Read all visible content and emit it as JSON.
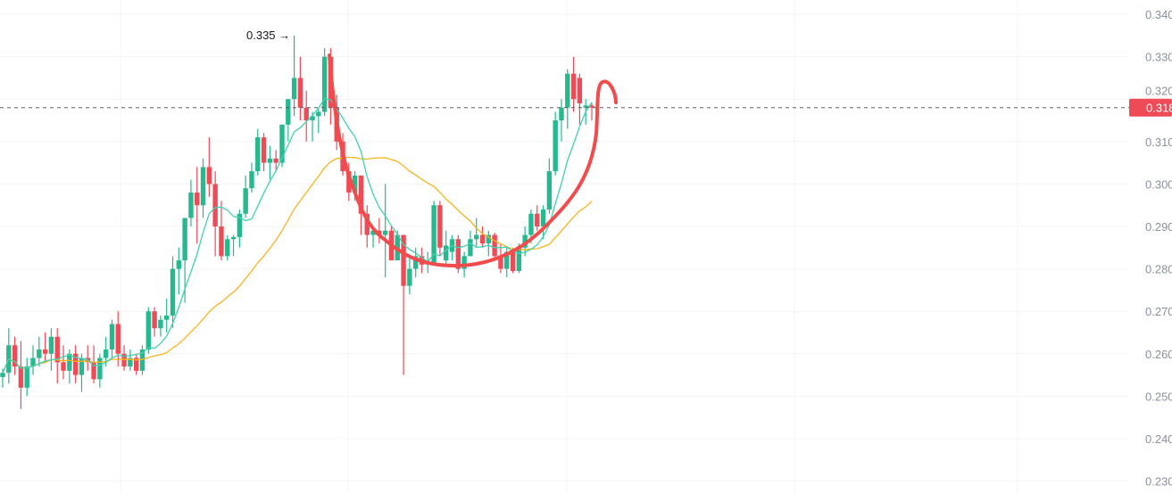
{
  "chart_data": {
    "type": "candlestick",
    "title": "",
    "ylim": [
      0.23,
      0.34
    ],
    "yticks": [
      "0.340",
      "0.330",
      "0.320",
      "0.310",
      "0.300",
      "0.290",
      "0.280",
      "0.270",
      "0.260",
      "0.250",
      "0.240",
      "0.230"
    ],
    "last_price": 0.318,
    "last_price_label": "0.318",
    "high_annotation": "0.335 →",
    "high_value": 0.335,
    "colors": {
      "up": "#26b98f",
      "down": "#ef4b57",
      "ma_short": "#3fd1b0",
      "ma_long": "#f7b41d",
      "drawing": "#f24b4b"
    },
    "ma_periods": [
      7,
      25
    ],
    "candles_ohlc": [
      [
        0.2545,
        0.2565,
        0.252,
        0.2555
      ],
      [
        0.2555,
        0.266,
        0.253,
        0.262
      ],
      [
        0.262,
        0.264,
        0.255,
        0.257
      ],
      [
        0.257,
        0.263,
        0.247,
        0.252
      ],
      [
        0.252,
        0.259,
        0.25,
        0.257
      ],
      [
        0.257,
        0.262,
        0.255,
        0.259
      ],
      [
        0.259,
        0.264,
        0.257,
        0.261
      ],
      [
        0.261,
        0.265,
        0.258,
        0.26
      ],
      [
        0.26,
        0.266,
        0.256,
        0.264
      ],
      [
        0.264,
        0.266,
        0.253,
        0.258
      ],
      [
        0.258,
        0.262,
        0.254,
        0.256
      ],
      [
        0.256,
        0.261,
        0.253,
        0.26
      ],
      [
        0.26,
        0.262,
        0.253,
        0.255
      ],
      [
        0.255,
        0.26,
        0.251,
        0.259
      ],
      [
        0.259,
        0.262,
        0.256,
        0.258
      ],
      [
        0.258,
        0.262,
        0.253,
        0.254
      ],
      [
        0.254,
        0.26,
        0.252,
        0.259
      ],
      [
        0.259,
        0.264,
        0.257,
        0.261
      ],
      [
        0.261,
        0.268,
        0.259,
        0.267
      ],
      [
        0.267,
        0.27,
        0.257,
        0.26
      ],
      [
        0.26,
        0.262,
        0.256,
        0.257
      ],
      [
        0.257,
        0.261,
        0.256,
        0.259
      ],
      [
        0.259,
        0.26,
        0.255,
        0.256
      ],
      [
        0.256,
        0.262,
        0.255,
        0.261
      ],
      [
        0.261,
        0.271,
        0.26,
        0.27
      ],
      [
        0.27,
        0.271,
        0.264,
        0.266
      ],
      [
        0.266,
        0.269,
        0.264,
        0.268
      ],
      [
        0.268,
        0.273,
        0.265,
        0.269
      ],
      [
        0.269,
        0.283,
        0.266,
        0.28
      ],
      [
        0.28,
        0.285,
        0.274,
        0.282
      ],
      [
        0.282,
        0.292,
        0.272,
        0.292
      ],
      [
        0.292,
        0.301,
        0.29,
        0.298
      ],
      [
        0.298,
        0.304,
        0.286,
        0.295
      ],
      [
        0.295,
        0.306,
        0.292,
        0.304
      ],
      [
        0.304,
        0.311,
        0.297,
        0.3
      ],
      [
        0.3,
        0.303,
        0.283,
        0.29
      ],
      [
        0.29,
        0.296,
        0.282,
        0.283
      ],
      [
        0.283,
        0.288,
        0.282,
        0.287
      ],
      [
        0.287,
        0.288,
        0.283,
        0.2875
      ],
      [
        0.2875,
        0.294,
        0.285,
        0.293
      ],
      [
        0.293,
        0.302,
        0.292,
        0.299
      ],
      [
        0.299,
        0.305,
        0.298,
        0.303
      ],
      [
        0.303,
        0.313,
        0.302,
        0.311
      ],
      [
        0.311,
        0.312,
        0.303,
        0.305
      ],
      [
        0.305,
        0.309,
        0.301,
        0.306
      ],
      [
        0.306,
        0.308,
        0.303,
        0.305
      ],
      [
        0.305,
        0.314,
        0.304,
        0.314
      ],
      [
        0.314,
        0.32,
        0.31,
        0.32
      ],
      [
        0.32,
        0.335,
        0.316,
        0.325
      ],
      [
        0.325,
        0.33,
        0.315,
        0.318
      ],
      [
        0.318,
        0.322,
        0.31,
        0.315
      ],
      [
        0.315,
        0.317,
        0.31,
        0.316
      ],
      [
        0.316,
        0.318,
        0.312,
        0.317
      ],
      [
        0.317,
        0.332,
        0.316,
        0.33
      ],
      [
        0.33,
        0.332,
        0.314,
        0.318
      ],
      [
        0.318,
        0.321,
        0.308,
        0.31
      ],
      [
        0.31,
        0.312,
        0.302,
        0.303
      ],
      [
        0.303,
        0.305,
        0.296,
        0.298
      ],
      [
        0.298,
        0.303,
        0.296,
        0.302
      ],
      [
        0.302,
        0.302,
        0.288,
        0.293
      ],
      [
        0.293,
        0.295,
        0.285,
        0.288
      ],
      [
        0.288,
        0.29,
        0.285,
        0.289
      ],
      [
        0.289,
        0.292,
        0.286,
        0.288
      ],
      [
        0.288,
        0.3,
        0.278,
        0.289
      ],
      [
        0.289,
        0.29,
        0.282,
        0.282
      ],
      [
        0.282,
        0.289,
        0.282,
        0.288
      ],
      [
        0.288,
        0.288,
        0.255,
        0.276
      ],
      [
        0.276,
        0.283,
        0.274,
        0.28
      ],
      [
        0.28,
        0.285,
        0.278,
        0.283
      ],
      [
        0.283,
        0.285,
        0.279,
        0.281
      ],
      [
        0.281,
        0.284,
        0.279,
        0.2815
      ],
      [
        0.2815,
        0.296,
        0.281,
        0.295
      ],
      [
        0.295,
        0.296,
        0.283,
        0.285
      ],
      [
        0.282,
        0.289,
        0.281,
        0.2855
      ],
      [
        0.284,
        0.288,
        0.282,
        0.287
      ],
      [
        0.287,
        0.288,
        0.279,
        0.28
      ],
      [
        0.28,
        0.284,
        0.278,
        0.283
      ],
      [
        0.283,
        0.289,
        0.283,
        0.287
      ],
      [
        0.287,
        0.292,
        0.285,
        0.288
      ],
      [
        0.288,
        0.29,
        0.285,
        0.286
      ],
      [
        0.286,
        0.289,
        0.283,
        0.288
      ],
      [
        0.288,
        0.2885,
        0.282,
        0.283
      ],
      [
        0.283,
        0.286,
        0.279,
        0.28
      ],
      [
        0.28,
        0.285,
        0.278,
        0.284
      ],
      [
        0.284,
        0.285,
        0.279,
        0.2795
      ],
      [
        0.2795,
        0.286,
        0.279,
        0.285
      ],
      [
        0.285,
        0.29,
        0.283,
        0.288
      ],
      [
        0.288,
        0.294,
        0.286,
        0.293
      ],
      [
        0.293,
        0.295,
        0.289,
        0.29
      ],
      [
        0.29,
        0.295,
        0.287,
        0.294
      ],
      [
        0.294,
        0.306,
        0.293,
        0.303
      ],
      [
        0.303,
        0.317,
        0.302,
        0.315
      ],
      [
        0.315,
        0.32,
        0.31,
        0.318
      ],
      [
        0.318,
        0.327,
        0.313,
        0.326
      ],
      [
        0.326,
        0.33,
        0.317,
        0.32
      ],
      [
        0.325,
        0.326,
        0.314,
        0.319
      ],
      [
        0.318,
        0.32,
        0.314,
        0.3185
      ],
      [
        0.3185,
        0.319,
        0.315,
        0.318
      ]
    ]
  }
}
